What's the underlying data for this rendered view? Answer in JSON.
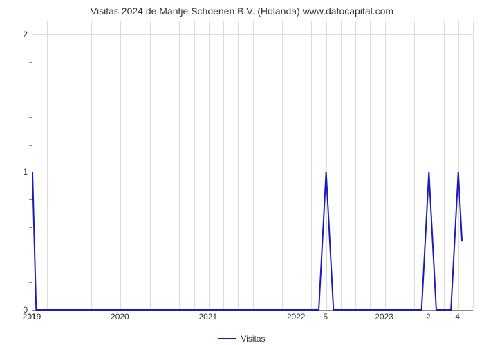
{
  "chart": {
    "type": "line",
    "title": "Visitas 2024 de Mantje Schoenen B.V. (Holanda) www.datocapital.com",
    "title_fontsize": 14,
    "title_color": "#333333",
    "background_color": "#ffffff",
    "plot_border_color": "#888888",
    "grid_color": "#dcdcdc",
    "line_color": "#1a1abf",
    "line_width": 2,
    "y_axis": {
      "min": 0,
      "max": 2.1,
      "ticks": [
        0,
        1,
        2
      ],
      "tick_labels": [
        "0",
        "1",
        "2"
      ],
      "minor_tick_count_between": 4,
      "label_fontsize": 12
    },
    "x_axis": {
      "min": 0,
      "max": 60,
      "major_ticks": [
        0,
        12,
        24,
        36,
        48,
        60
      ],
      "major_tick_labels": [
        "2019",
        "2020",
        "2021",
        "2022",
        "2023",
        ""
      ],
      "minor_step": 2,
      "label_fontsize": 12
    },
    "data_point_labels": [
      {
        "x": 0,
        "text": "11"
      },
      {
        "x": 40,
        "text": "5"
      },
      {
        "x": 54,
        "text": "2"
      },
      {
        "x": 58,
        "text": "4"
      }
    ],
    "series": {
      "name": "Visitas",
      "points": [
        {
          "x": 0,
          "y": 1
        },
        {
          "x": 0.5,
          "y": 0
        },
        {
          "x": 39,
          "y": 0
        },
        {
          "x": 40,
          "y": 1
        },
        {
          "x": 41,
          "y": 0
        },
        {
          "x": 53,
          "y": 0
        },
        {
          "x": 54,
          "y": 1
        },
        {
          "x": 55,
          "y": 0
        },
        {
          "x": 57,
          "y": 0
        },
        {
          "x": 58,
          "y": 1
        },
        {
          "x": 58.5,
          "y": 0.5
        }
      ]
    },
    "legend": {
      "label": "Visitas",
      "color": "#1a1abf",
      "fontsize": 12
    }
  }
}
